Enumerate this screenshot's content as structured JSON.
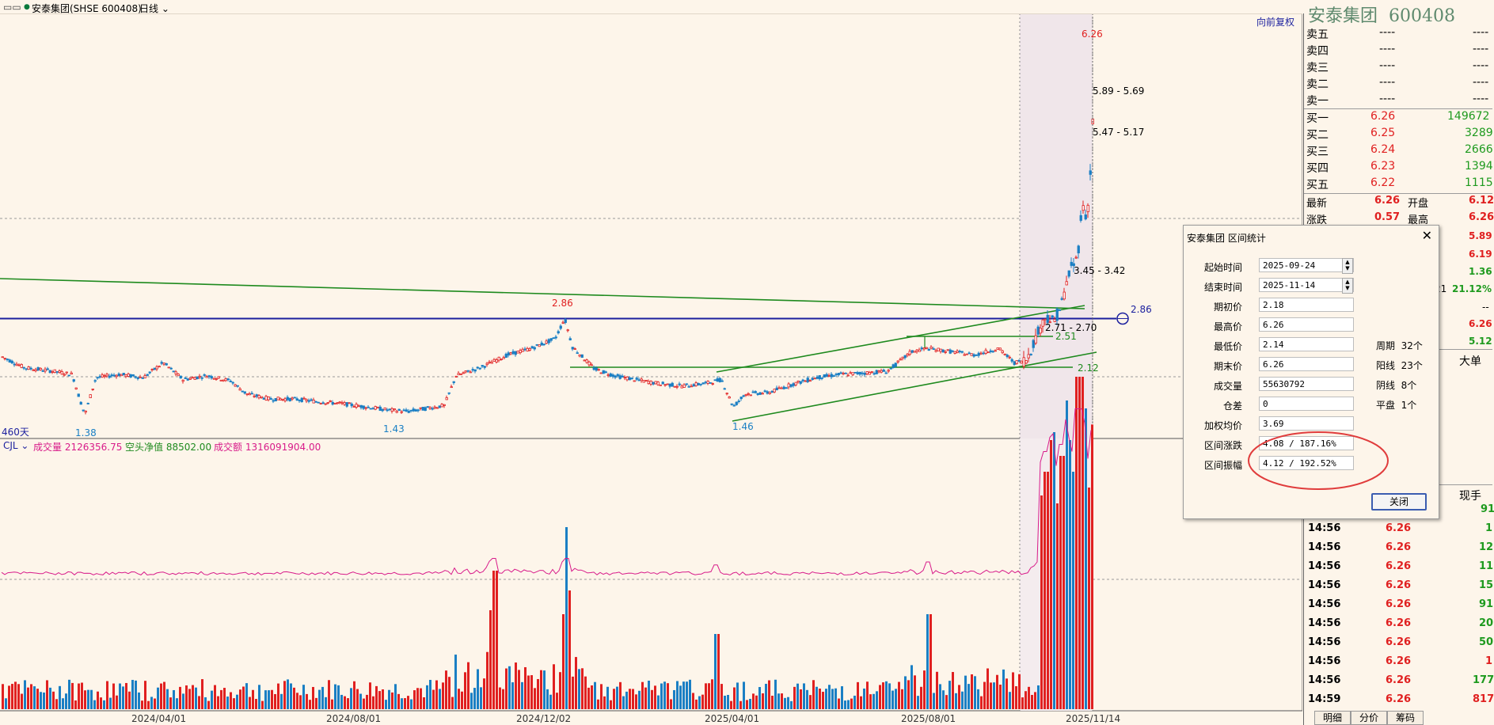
{
  "header": {
    "indicator": "▭▭",
    "title": "安泰集团(SHSE 600408)",
    "period": "日线"
  },
  "main_chart": {
    "restore_button": "向前复权",
    "days_label": "460天",
    "price_labels": {
      "high_1286": "2.86",
      "low_138": "1.38",
      "low_143": "1.43",
      "low_146": "1.46",
      "top_626": "6.26",
      "gap_589": "5.89 - 5.69",
      "gap_547": "5.47 - 5.17",
      "gap_345": "3.45 - 3.42",
      "gap_271": "2.71 - 2.70",
      "line_251": "2.51",
      "line_212": "2.12",
      "hline_286": "2.86"
    },
    "x_dates": [
      "2024/04/01",
      "2024/08/01",
      "2024/12/02",
      "2025/04/01",
      "2025/08/01",
      "2025/11/14"
    ]
  },
  "volume_panel": {
    "name": "CJL",
    "vol_label": "成交量 2126356.75",
    "net_label": "空头净值 88502.00",
    "amount_label": "成交额 1316091904.00"
  },
  "right_panel": {
    "stock_name": "安泰集团",
    "stock_code": "600408",
    "asks": [
      {
        "label": "卖五",
        "price": "----",
        "vol": "----"
      },
      {
        "label": "卖四",
        "price": "----",
        "vol": "----"
      },
      {
        "label": "卖三",
        "price": "----",
        "vol": "----"
      },
      {
        "label": "卖二",
        "price": "----",
        "vol": "----"
      },
      {
        "label": "卖一",
        "price": "----",
        "vol": "----"
      }
    ],
    "bids": [
      {
        "label": "买一",
        "price": "6.26",
        "vol": "149672"
      },
      {
        "label": "买二",
        "price": "6.25",
        "vol": "3289"
      },
      {
        "label": "买三",
        "price": "6.24",
        "vol": "2666"
      },
      {
        "label": "买四",
        "price": "6.23",
        "vol": "1394"
      },
      {
        "label": "买五",
        "price": "6.22",
        "vol": "1115"
      }
    ],
    "quote": {
      "latest_label": "最新",
      "latest": "6.26",
      "open_label": "开盘",
      "open": "6.12",
      "change_label": "涨跌",
      "change": "0.57",
      "high_label": "最高",
      "high": "6.26"
    },
    "quote_values": [
      "5.89",
      "6.19",
      "1.36",
      "21.12%",
      "--",
      "6.26",
      "5.12"
    ],
    "quote_partial_label": "21",
    "big_order": "大单",
    "current_hand": "现手",
    "ticks": [
      {
        "time": "",
        "price": "",
        "vol": "91",
        "color": "#1e9a1e"
      },
      {
        "time": "14:56",
        "price": "6.26",
        "vol": "1",
        "color": "#1e9a1e"
      },
      {
        "time": "14:56",
        "price": "6.26",
        "vol": "12",
        "color": "#1e9a1e"
      },
      {
        "time": "14:56",
        "price": "6.26",
        "vol": "11",
        "color": "#1e9a1e"
      },
      {
        "time": "14:56",
        "price": "6.26",
        "vol": "15",
        "color": "#1e9a1e"
      },
      {
        "time": "14:56",
        "price": "6.26",
        "vol": "91",
        "color": "#1e9a1e"
      },
      {
        "time": "14:56",
        "price": "6.26",
        "vol": "20",
        "color": "#1e9a1e"
      },
      {
        "time": "14:56",
        "price": "6.26",
        "vol": "50",
        "color": "#1e9a1e"
      },
      {
        "time": "14:56",
        "price": "6.26",
        "vol": "1",
        "color": "#e02020"
      },
      {
        "time": "14:56",
        "price": "6.26",
        "vol": "177",
        "color": "#1e9a1e"
      },
      {
        "time": "14:59",
        "price": "6.26",
        "vol": "817",
        "color": "#e02020"
      }
    ],
    "tabs": [
      "明细",
      "分价",
      "筹码"
    ]
  },
  "dialog": {
    "title": "安泰集团 区间统计",
    "close_x": "✕",
    "fields": [
      {
        "label": "起始时间",
        "value": "2025-09-24"
      },
      {
        "label": "结束时间",
        "value": "2025-11-14"
      },
      {
        "label": "期初价",
        "value": "2.18"
      },
      {
        "label": "最高价",
        "value": "6.26"
      },
      {
        "label": "最低价",
        "value": "2.14"
      },
      {
        "label": "期末价",
        "value": "6.26"
      },
      {
        "label": "成交量",
        "value": "55630792"
      },
      {
        "label": "仓差",
        "value": "0"
      },
      {
        "label": "加权均价",
        "value": "3.69"
      },
      {
        "label": "区间涨跌",
        "value": "4.08 / 187.16%"
      },
      {
        "label": "区间振幅",
        "value": "4.12 / 192.52%"
      }
    ],
    "stats": [
      {
        "label": "周期",
        "value": "32个"
      },
      {
        "label": "阳线",
        "value": "23个"
      },
      {
        "label": "阴线",
        "value": "8个"
      },
      {
        "label": "平盘",
        "value": "1个"
      }
    ],
    "close_button": "关闭"
  },
  "colors": {
    "background": "#fdf5ea",
    "up": "#e02020",
    "down": "#1a7fc4",
    "trendline": "#1e8a1e",
    "hline": "#1b1f9e",
    "ma": "#d81b8a"
  }
}
